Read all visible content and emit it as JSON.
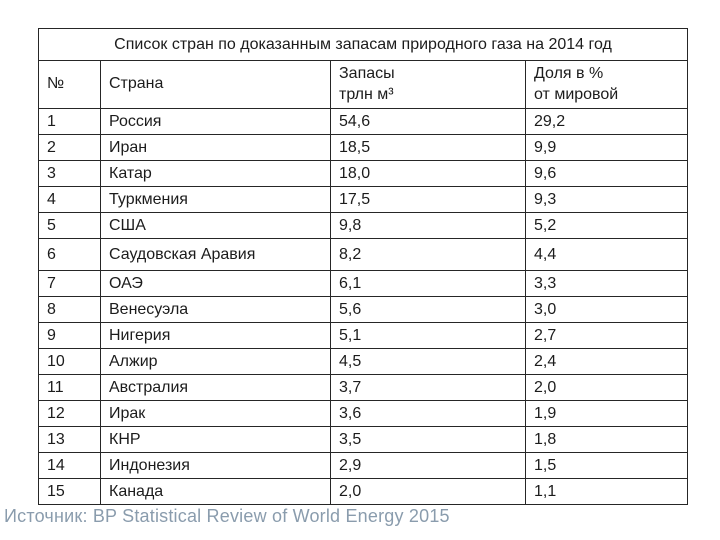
{
  "colors": {
    "border": "#262626",
    "text": "#1c1c1c",
    "source_text": "#8a9cad",
    "background": "#ffffff"
  },
  "table": {
    "title": "Список стран по доказанным запасам природного газа на 2014 год",
    "headers": {
      "num": "№",
      "country": "Страна",
      "reserves_line1": "Запасы",
      "reserves_line2": "трлн м³",
      "share_line1": "Доля в %",
      "share_line2": "от мировой"
    },
    "rows": [
      {
        "num": "1",
        "country": "Россия",
        "reserves": "54,6",
        "share": "29,2"
      },
      {
        "num": "2",
        "country": "Иран",
        "reserves": "18,5",
        "share": "9,9"
      },
      {
        "num": "3",
        "country": "Катар",
        "reserves": "18,0",
        "share": "9,6"
      },
      {
        "num": "4",
        "country": "Туркмения",
        "reserves": "17,5",
        "share": "9,3"
      },
      {
        "num": "5",
        "country": "США",
        "reserves": "9,8",
        "share": "5,2"
      },
      {
        "num": "6",
        "country": "Саудовская Аравия",
        "reserves": "8,2",
        "share": "4,4"
      },
      {
        "num": "7",
        "country": "ОАЭ",
        "reserves": "6,1",
        "share": "3,3"
      },
      {
        "num": "8",
        "country": "Венесуэла",
        "reserves": "5,6",
        "share": "3,0"
      },
      {
        "num": "9",
        "country": "Нигерия",
        "reserves": "5,1",
        "share": "2,7"
      },
      {
        "num": "10",
        "country": "Алжир",
        "reserves": "4,5",
        "share": "2,4"
      },
      {
        "num": "11",
        "country": "Австралия",
        "reserves": "3,7",
        "share": "2,0"
      },
      {
        "num": "12",
        "country": "Ирак",
        "reserves": "3,6",
        "share": "1,9"
      },
      {
        "num": "13",
        "country": "КНР",
        "reserves": "3,5",
        "share": "1,8"
      },
      {
        "num": "14",
        "country": "Индонезия",
        "reserves": "2,9",
        "share": "1,5"
      },
      {
        "num": "15",
        "country": "Канада",
        "reserves": "2,0",
        "share": "1,1"
      }
    ]
  },
  "source": {
    "label": "Источник: BP Statistical Review of World Energy 2015"
  }
}
